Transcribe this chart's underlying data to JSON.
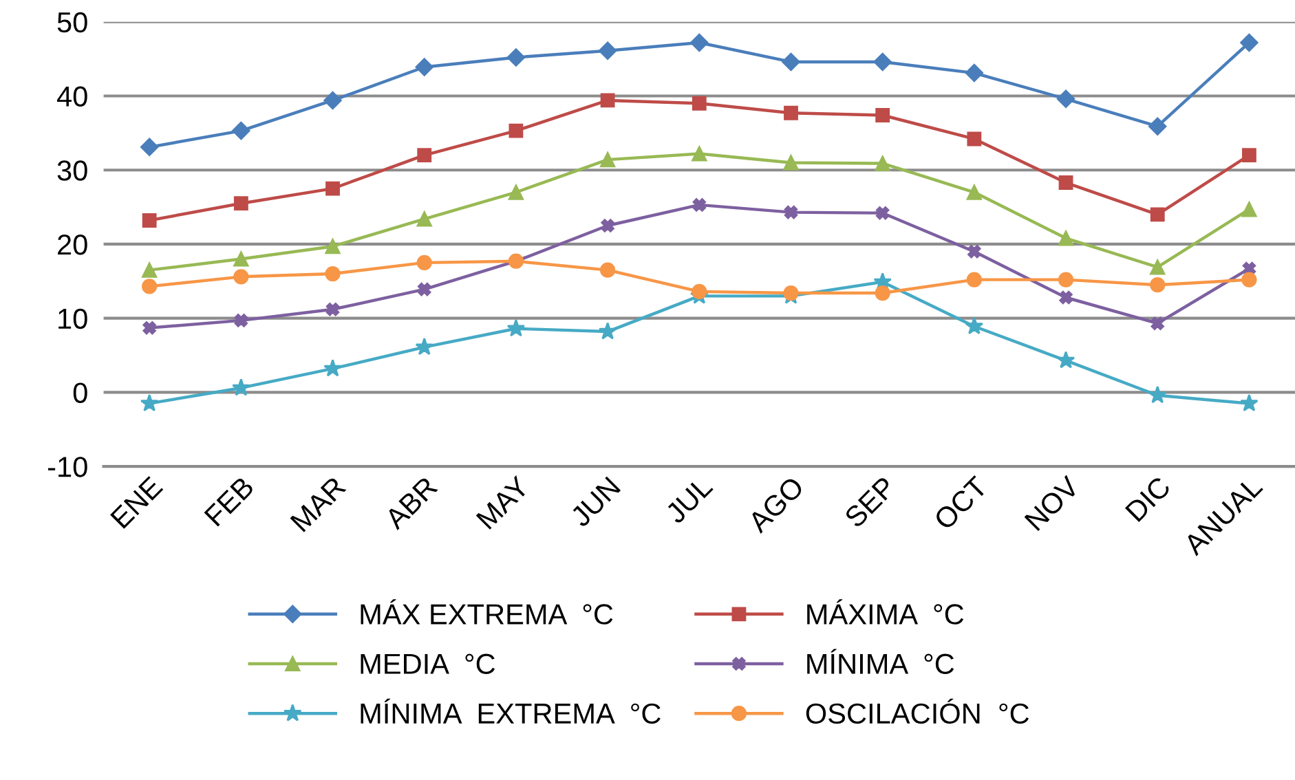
{
  "chart_data": {
    "type": "line",
    "categories": [
      "ENE",
      "FEB",
      "MAR",
      "ABR",
      "MAY",
      "JUN",
      "JUL",
      "AGO",
      "SEP",
      "OCT",
      "NOV",
      "DIC",
      "ANUAL"
    ],
    "series": [
      {
        "name": "MÁX EXTREMA  °C",
        "color": "#4a7ebb",
        "marker": "diamond",
        "values": [
          33.1,
          35.3,
          39.4,
          43.9,
          45.2,
          46.1,
          47.2,
          44.6,
          44.6,
          43.1,
          39.6,
          35.9,
          47.2
        ]
      },
      {
        "name": "MÁXIMA  °C",
        "color": "#be4b48",
        "marker": "square",
        "values": [
          23.2,
          25.5,
          27.5,
          32,
          35.3,
          39.4,
          39,
          37.7,
          37.4,
          34.2,
          28.3,
          24,
          32
        ]
      },
      {
        "name": "MEDIA  °C",
        "color": "#98b954",
        "marker": "triangle",
        "values": [
          16.5,
          18,
          19.7,
          23.4,
          27,
          31.4,
          32.2,
          31,
          30.9,
          27,
          20.8,
          16.9,
          24.7
        ]
      },
      {
        "name": "MÍNIMA  °C",
        "color": "#7d60a0",
        "marker": "cross",
        "values": [
          8.7,
          9.7,
          11.2,
          13.9,
          17.7,
          22.5,
          25.3,
          24.3,
          24.2,
          19,
          12.8,
          9.3,
          16.7
        ]
      },
      {
        "name": "MÍNIMA  EXTREMA  °C",
        "color": "#46aac5",
        "marker": "star",
        "values": [
          -1.5,
          0.6,
          3.2,
          6.1,
          8.6,
          8.2,
          13,
          13,
          14.9,
          8.9,
          4.3,
          -0.4,
          -1.5
        ]
      },
      {
        "name": "OSCILACIÓN  °C",
        "color": "#f79646",
        "marker": "circle",
        "values": [
          14.3,
          15.6,
          16,
          17.5,
          17.7,
          16.5,
          13.6,
          13.4,
          13.4,
          15.2,
          15.2,
          14.5,
          15.2
        ]
      }
    ],
    "ylim": [
      -10,
      50
    ],
    "yticks": [
      -10,
      0,
      10,
      20,
      30,
      40,
      50
    ],
    "grid": "y",
    "legend": "bottom",
    "line_style": "solid"
  }
}
